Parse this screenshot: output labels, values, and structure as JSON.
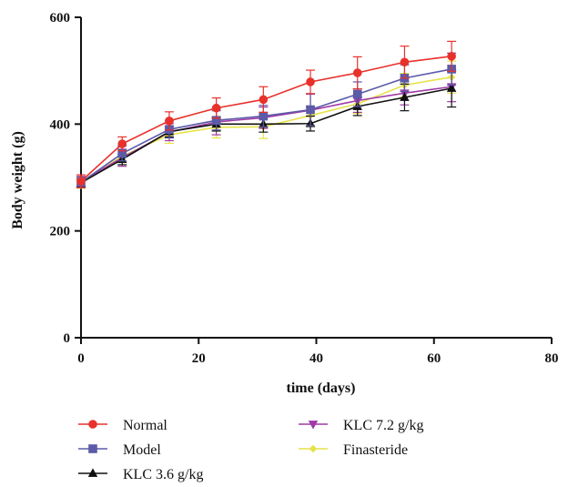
{
  "chart_data": {
    "type": "line",
    "xlabel": "time (days)",
    "ylabel": "Body weight (g)",
    "xlim": [
      0,
      80
    ],
    "ylim": [
      0,
      600
    ],
    "x_ticks": [
      0,
      20,
      40,
      60,
      80
    ],
    "y_ticks": [
      0,
      200,
      400,
      600
    ],
    "x_tick_labels": [
      "0",
      "20",
      "40",
      "60",
      "80"
    ],
    "y_tick_labels": [
      "0",
      "200",
      "400",
      "600"
    ],
    "grid": false,
    "legend_position": "bottom",
    "x": [
      0,
      7,
      15,
      23,
      31,
      39,
      47,
      55,
      63
    ],
    "series": [
      {
        "name": "Normal",
        "marker": "circle",
        "color": "#e8312b",
        "values": [
          293,
          363,
          406,
          430,
          446,
          479,
          496,
          516,
          527
        ],
        "errors": [
          12,
          13,
          17,
          19,
          24,
          22,
          30,
          30,
          28
        ]
      },
      {
        "name": "Model",
        "marker": "square",
        "color": "#5b5ba8",
        "values": [
          291,
          345,
          390,
          407,
          415,
          427,
          456,
          486,
          503
        ],
        "errors": [
          10,
          14,
          16,
          18,
          20,
          30,
          23,
          25,
          30
        ]
      },
      {
        "name": "KLC 3.6 g/kg",
        "marker": "triangle-up",
        "color": "#111111",
        "values": [
          290,
          334,
          386,
          400,
          400,
          401,
          433,
          450,
          467
        ],
        "errors": [
          8,
          10,
          10,
          13,
          15,
          14,
          17,
          25,
          35
        ]
      },
      {
        "name": "KLC 7.2 g/kg",
        "marker": "triangle-down",
        "color": "#a03aa6",
        "values": [
          292,
          337,
          385,
          404,
          412,
          426,
          444,
          458,
          470
        ],
        "errors": [
          10,
          16,
          16,
          24,
          20,
          30,
          22,
          22,
          28
        ]
      },
      {
        "name": "Finasteride",
        "marker": "diamond",
        "color": "#e6e24a",
        "values": [
          290,
          340,
          380,
          394,
          395,
          416,
          438,
          473,
          488
        ],
        "errors": [
          10,
          12,
          16,
          20,
          22,
          18,
          18,
          22,
          30
        ]
      }
    ]
  }
}
